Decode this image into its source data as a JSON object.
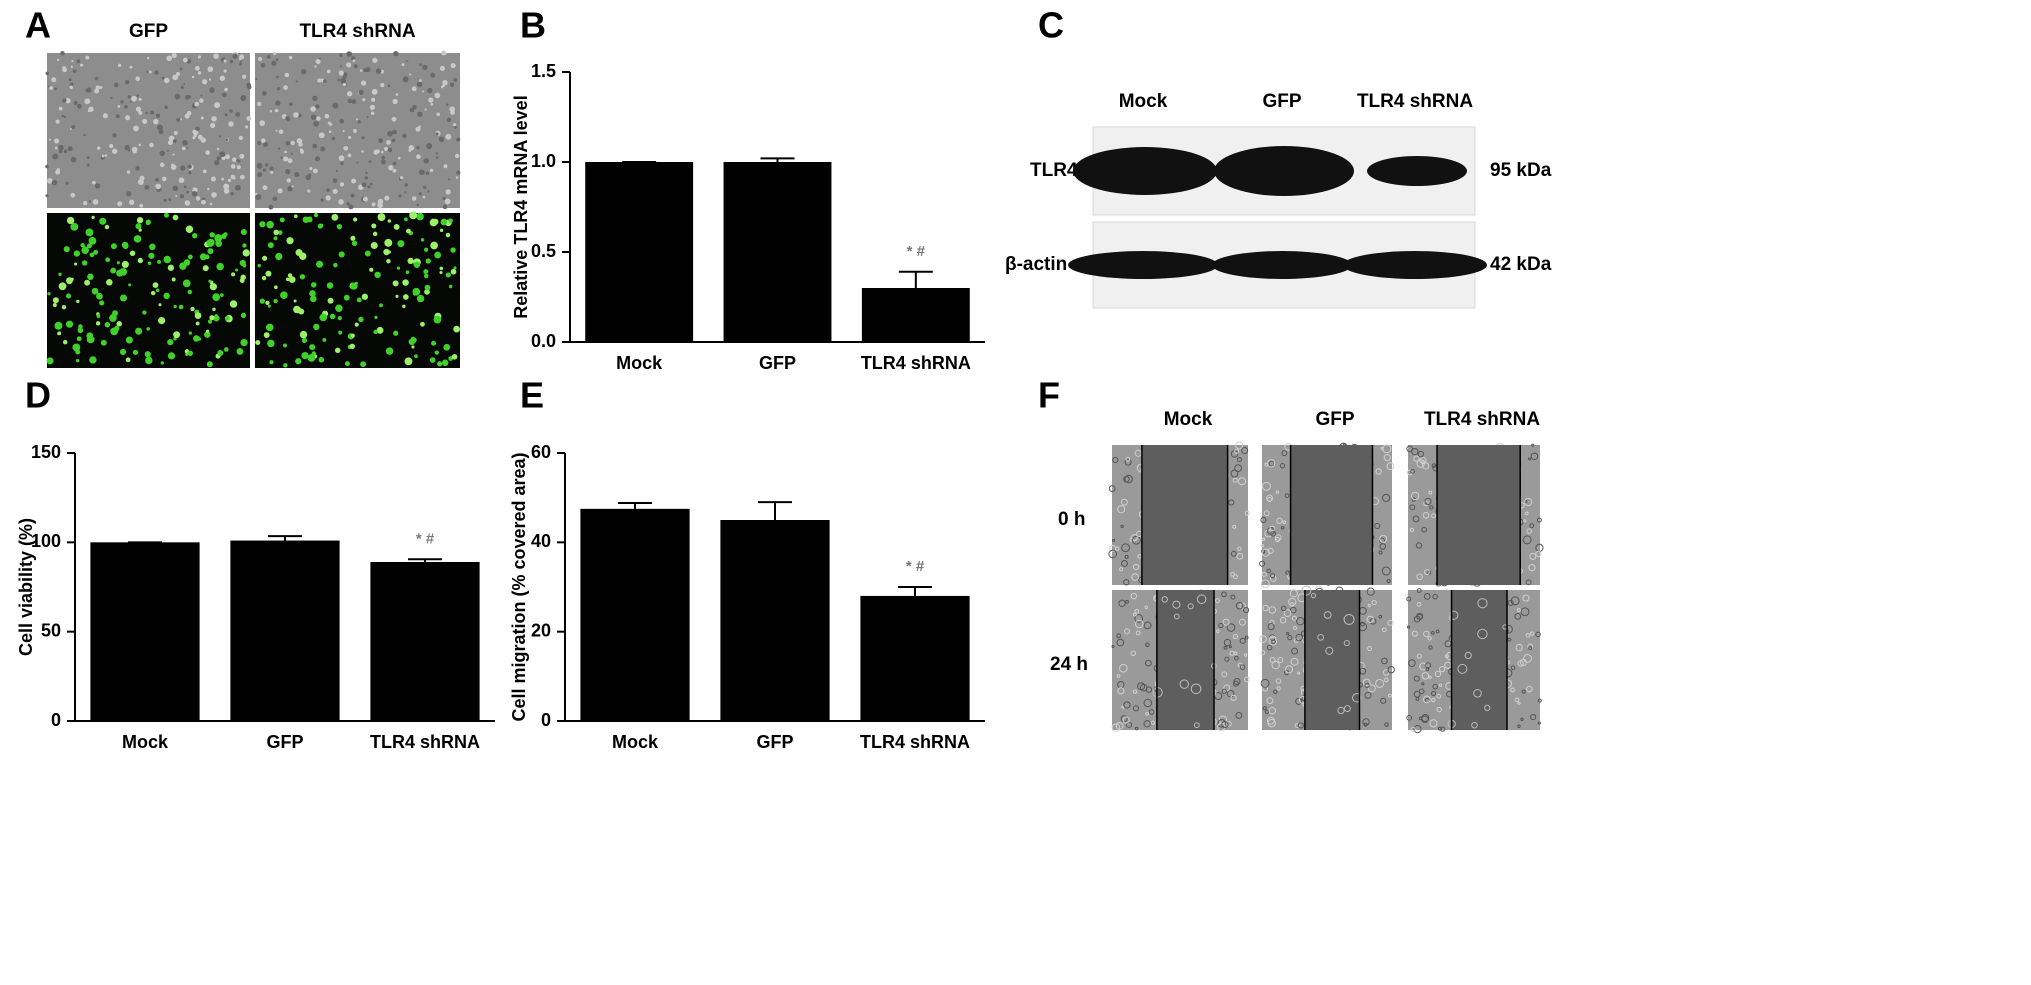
{
  "panel_labels": [
    "A",
    "B",
    "C",
    "D",
    "E",
    "F"
  ],
  "panel_a": {
    "columns": [
      "GFP",
      "TLR4 shRNA"
    ]
  },
  "panel_c": {
    "lanes": [
      "Mock",
      "GFP",
      "TLR4 shRNA"
    ],
    "rows": [
      {
        "label": "TLR4",
        "size": "95 kDa"
      },
      {
        "label": "β-actin",
        "size": "42 kDa"
      }
    ]
  },
  "panel_f": {
    "columns": [
      "Mock",
      "GFP",
      "TLR4 shRNA"
    ],
    "rows": [
      "0 h",
      "24 h"
    ]
  },
  "chart_data": [
    {
      "type": "bar",
      "ylabel": "Relative TLR4 mRNA level",
      "categories": [
        "Mock",
        "GFP",
        "TLR4 shRNA"
      ],
      "values": [
        1.0,
        1.0,
        0.3
      ],
      "errors": [
        0,
        0.02,
        0.09
      ],
      "value_annotations": [
        null,
        null,
        "* #"
      ],
      "color": "#000000",
      "ylim": [
        0,
        1.5
      ],
      "yticks": [
        {
          "value": 0,
          "label": "0.0"
        },
        {
          "value": 0.5,
          "label": "0.5"
        },
        {
          "value": 1,
          "label": "1.0"
        },
        {
          "value": 1.5,
          "label": "1.5"
        }
      ]
    },
    {
      "type": "bar",
      "ylabel": "Cell viability (%)",
      "categories": [
        "Mock",
        "GFP",
        "TLR4 shRNA"
      ],
      "values": [
        100,
        101,
        89
      ],
      "errors": [
        0,
        2.5,
        1.5
      ],
      "value_annotations": [
        null,
        null,
        "* #"
      ],
      "color": "#000000",
      "ylim": [
        0,
        150
      ],
      "yticks": [
        0,
        50,
        100,
        150
      ]
    },
    {
      "type": "bar",
      "ylabel": "Cell migration  (% covered area)",
      "categories": [
        "Mock",
        "GFP",
        "TLR4 shRNA"
      ],
      "values": [
        47.5,
        45,
        28
      ],
      "errors": [
        1.3,
        4,
        2
      ],
      "value_annotations": [
        null,
        null,
        "* #"
      ],
      "color": "#000000",
      "ylim": [
        0,
        60
      ],
      "yticks": [
        0,
        20,
        40,
        60
      ]
    }
  ]
}
